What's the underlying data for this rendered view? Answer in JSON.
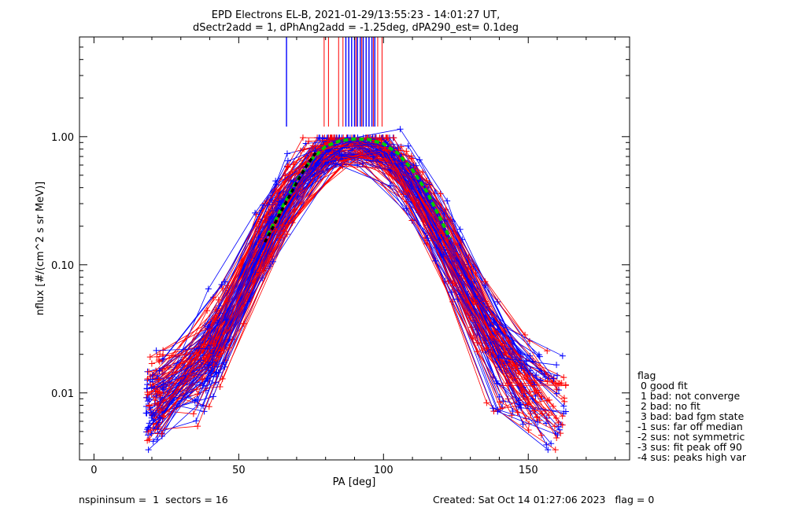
{
  "chart_data": {
    "type": "line",
    "title_line1": "EPD Electrons EL-B, 2021-01-29/13:55:23 - 14:01:27 UT,",
    "title_line2": "dSectr2add = 1, dPhAng2add = -1.25deg, dPA290_est=   0.1deg",
    "xlabel": "PA [deg]",
    "ylabel": "nflux [#/(cm^2 s sr MeV)]",
    "xlim": [
      -5,
      185
    ],
    "ylim": [
      0.003,
      6.0
    ],
    "yscale": "log",
    "xticks": [
      0,
      50,
      100,
      150
    ],
    "xtick_labels": [
      "0",
      "50",
      "100",
      "150"
    ],
    "yticks": [
      0.01,
      0.1,
      1.0
    ],
    "ytick_labels": [
      "0.01",
      "0.10",
      "1.00"
    ],
    "grid": false,
    "legend_position": "right, outside plot",
    "series_colors": {
      "red": "#ff0000",
      "blue": "#0000ff",
      "green_fit": "#00cc00",
      "black_fit": "#000000"
    },
    "profile_model": {
      "pa_nodes": [
        20,
        25,
        30,
        35,
        40,
        45,
        50,
        55,
        60,
        65,
        70,
        75,
        80,
        85,
        90,
        95,
        100,
        105,
        110,
        115,
        120,
        125,
        130,
        135,
        140,
        145,
        150,
        155,
        160
      ],
      "flux_nodes": [
        0.008,
        0.009,
        0.011,
        0.013,
        0.017,
        0.03,
        0.055,
        0.1,
        0.18,
        0.3,
        0.48,
        0.7,
        0.85,
        0.88,
        0.9,
        0.88,
        0.85,
        0.7,
        0.48,
        0.3,
        0.18,
        0.1,
        0.055,
        0.03,
        0.017,
        0.013,
        0.011,
        0.009,
        0.008
      ]
    },
    "green_fit": {
      "x": [
        60,
        65,
        70,
        75,
        80,
        85,
        90,
        95,
        100,
        105,
        110,
        115,
        120,
        123
      ],
      "y": [
        0.17,
        0.28,
        0.45,
        0.66,
        0.84,
        0.93,
        0.96,
        0.95,
        0.88,
        0.74,
        0.55,
        0.37,
        0.22,
        0.16
      ]
    },
    "black_fit": {
      "x": [
        59,
        62,
        65,
        68,
        71,
        74,
        77
      ],
      "y": [
        0.15,
        0.2,
        0.27,
        0.36,
        0.48,
        0.62,
        0.77
      ]
    },
    "spikes": {
      "red_x": [
        79.5,
        81,
        84.5,
        86,
        88,
        90.5,
        92.5,
        95,
        96.5,
        98,
        99.5
      ],
      "blue_x": [
        66.5,
        87,
        88,
        89,
        90,
        91,
        92,
        93,
        94,
        95,
        96,
        97
      ]
    }
  },
  "legend": {
    "title": "flag",
    "items": [
      " 0 good fit",
      " 1 bad: not converge",
      " 2 bad: no fit",
      " 3 bad: bad fgm state",
      "-1 sus: far off median",
      "-2 sus: not symmetric",
      "-3 sus: fit peak off 90",
      "-4 sus: peaks high var"
    ]
  },
  "footer": {
    "left": "nspininsum =  1  sectors = 16",
    "right": "Created: Sat Oct 14 01:27:06 2023   flag = 0"
  }
}
